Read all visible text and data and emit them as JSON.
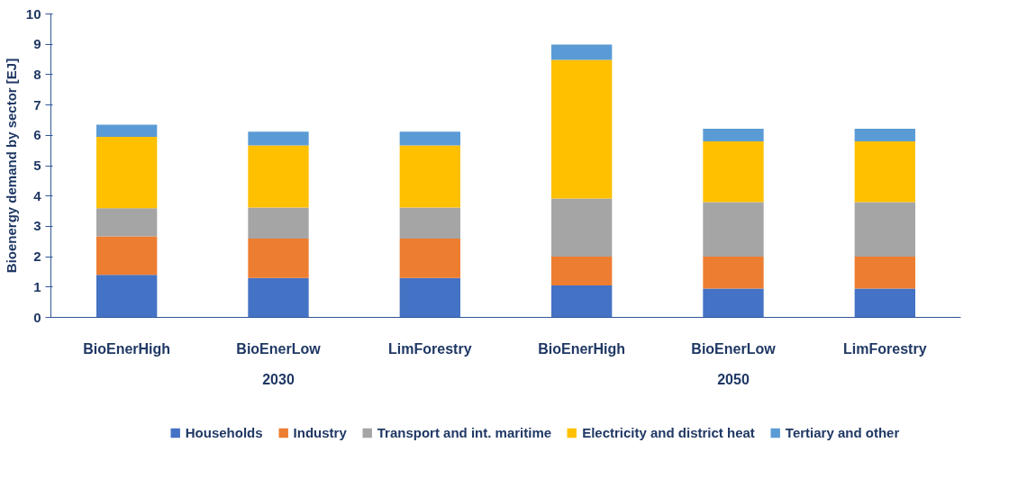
{
  "chart_data": {
    "type": "bar",
    "stacked": true,
    "ylabel": "Bioenergy demand by sector [EJ]",
    "categories": [
      "BioEnerHigh",
      "BioEnerLow",
      "LimForestry",
      "BioEnerHigh",
      "BioEnerLow",
      "LimForestry"
    ],
    "series": [
      {
        "name": "Households",
        "color": "#4472c4",
        "values": [
          1.4,
          1.3,
          1.3,
          1.05,
          0.95,
          0.95
        ]
      },
      {
        "name": "Industry",
        "color": "#ed7d31",
        "values": [
          1.27,
          1.3,
          1.3,
          0.95,
          1.05,
          1.05
        ]
      },
      {
        "name": "Transport and int. maritime",
        "color": "#a5a5a5",
        "values": [
          0.93,
          1.02,
          1.02,
          1.92,
          1.8,
          1.8
        ]
      },
      {
        "name": "Electricity and district heat",
        "color": "#ffc000",
        "values": [
          2.35,
          2.05,
          2.05,
          4.57,
          2.0,
          2.0
        ]
      },
      {
        "name": "Tertiary and other",
        "color": "#5b9bd5",
        "values": [
          0.4,
          0.45,
          0.45,
          0.5,
          0.42,
          0.42
        ]
      }
    ],
    "annotations": [
      "2030",
      "2050"
    ],
    "ylim": [
      0,
      10
    ],
    "yticks": [
      0,
      1,
      2,
      3,
      4,
      5,
      6,
      7,
      8,
      9,
      10
    ],
    "grid": false,
    "legend": "bottom"
  }
}
